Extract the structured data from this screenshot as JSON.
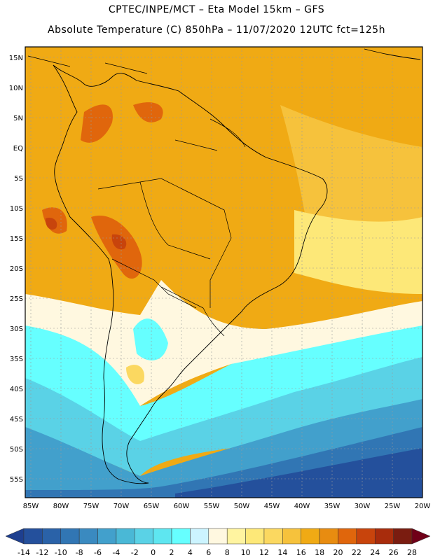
{
  "header": {
    "line1": "CPTEC/INPE/MCT –  Eta Model 15km – GFS",
    "line2": "Absolute Temperature (C) 850hPa – 11/07/2020 12UTC fct=125h"
  },
  "axes": {
    "lat_labels": [
      "15N",
      "10N",
      "5N",
      "EQ",
      "5S",
      "10S",
      "15S",
      "20S",
      "25S",
      "30S",
      "35S",
      "40S",
      "45S",
      "50S",
      "55S"
    ],
    "lon_labels": [
      "85W",
      "80W",
      "75W",
      "70W",
      "65W",
      "60W",
      "55W",
      "50W",
      "45W",
      "40W",
      "35W",
      "30W",
      "25W",
      "20W"
    ]
  },
  "colorbar": {
    "labels": [
      "-14",
      "-12",
      "-10",
      "-8",
      "-6",
      "-4",
      "-2",
      "0",
      "2",
      "4",
      "6",
      "8",
      "10",
      "12",
      "14",
      "16",
      "18",
      "20",
      "22",
      "24",
      "26",
      "28"
    ],
    "colors": [
      "#1e3f8f",
      "#24509c",
      "#2a62a8",
      "#3176b4",
      "#3a8ac0",
      "#42a0cc",
      "#4ab8d6",
      "#5ad2e6",
      "#5ee6f0",
      "#66ffff",
      "#ccf4ff",
      "#fff8e0",
      "#fff4a0",
      "#fde878",
      "#fbd860",
      "#f6c23c",
      "#f0aa14",
      "#e88c10",
      "#e0660c",
      "#c8440c",
      "#a82c0c",
      "#7a1c10",
      "#700018"
    ]
  },
  "map_colors": {
    "warm_main": "#f0aa14",
    "warm_light": "#f6c23c",
    "hot": "#e0660c",
    "hottest": "#c8440c",
    "yellow": "#fde878",
    "pale": "#fff8e0",
    "cyan": "#66ffff",
    "cyan2": "#5ad2e6",
    "teal": "#42a0cc",
    "blue": "#3176b4",
    "deep_blue": "#24509c"
  }
}
